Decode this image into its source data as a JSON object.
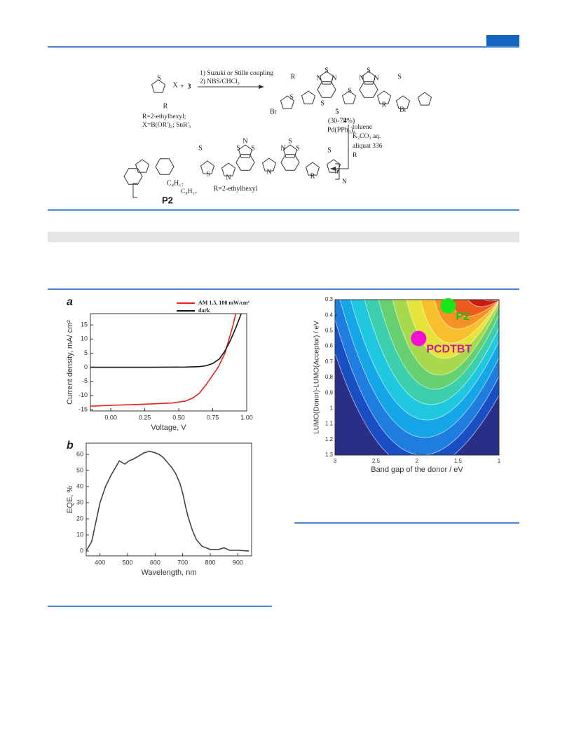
{
  "scheme": {
    "labels": [
      "S",
      "X",
      "+",
      "3",
      "R",
      "R=2-ethylhexyl;",
      "X=B(OR')₂; SnR'₃",
      "1) Suzuki or Stille coupling",
      "2) NBS/CHCl₃",
      "Br",
      "R",
      "S",
      "N",
      "S",
      "N",
      "S",
      "N",
      "N",
      "S",
      "S",
      "R",
      "S",
      "Br",
      "5",
      "(30-75%)",
      "4",
      "Pd(PPh₃)₄",
      "toluene",
      "K₂CO₃ aq.",
      "aliquat 336",
      "R",
      "S",
      "S",
      "N",
      "S",
      "N",
      "S",
      "N",
      "N",
      "S",
      "S",
      "R",
      "S",
      "n",
      "N",
      "C₈H₁₇",
      "C₈H₁₇",
      "P2",
      "R=2-ethylhexyl"
    ]
  },
  "chart_data": [
    {
      "type": "line",
      "panel": "a",
      "xlabel": "Voltage, V",
      "ylabel": "Current density, mA/ cm²",
      "xlim": [
        -0.15,
        1.0
      ],
      "ylim": [
        -15.5,
        19
      ],
      "xticks": [
        {
          "value": 0,
          "label": "0.00"
        },
        {
          "value": 0.25,
          "label": "0.25"
        },
        {
          "value": 0.5,
          "label": "0.50"
        },
        {
          "value": 0.75,
          "label": "0.75"
        },
        {
          "value": 1,
          "label": "1.00"
        }
      ],
      "yticks": [
        -15,
        -10,
        -5,
        0,
        5,
        10,
        15
      ],
      "series": [
        {
          "name": "AM 1.5, 100 mW/cm²",
          "color": "#e8231c",
          "x": [
            -0.15,
            0,
            0.15,
            0.3,
            0.45,
            0.55,
            0.6,
            0.65,
            0.7,
            0.75,
            0.79,
            0.84,
            0.87,
            0.9,
            0.92
          ],
          "values": [
            -13.8,
            -13.5,
            -13.3,
            -13.0,
            -12.7,
            -12.0,
            -11.0,
            -9.3,
            -6.3,
            -2.8,
            0,
            5,
            10,
            15,
            19
          ]
        },
        {
          "name": "dark",
          "color": "#111111",
          "x": [
            -0.15,
            0,
            0.3,
            0.55,
            0.65,
            0.7,
            0.75,
            0.8,
            0.84,
            0.88,
            0.92,
            0.96
          ],
          "values": [
            0,
            0,
            0,
            0.05,
            0.2,
            0.5,
            1.3,
            3.0,
            5.8,
            9.5,
            14,
            19
          ]
        }
      ]
    },
    {
      "type": "line",
      "panel": "b",
      "xlabel": "Wavelength, nm",
      "ylabel": "EQE, %",
      "xlim": [
        350,
        950
      ],
      "ylim": [
        -3,
        67
      ],
      "xticks": [
        400,
        500,
        600,
        700,
        800,
        900
      ],
      "yticks": [
        0,
        10,
        20,
        30,
        40,
        50,
        60
      ],
      "series": [
        {
          "name": "EQE",
          "color": "#444444",
          "x": [
            350,
            370,
            385,
            400,
            420,
            440,
            460,
            470,
            480,
            490,
            505,
            520,
            540,
            560,
            580,
            600,
            615,
            630,
            645,
            660,
            675,
            690,
            700,
            710,
            720,
            735,
            750,
            770,
            800,
            830,
            850,
            870,
            900,
            940
          ],
          "values": [
            0,
            6,
            18,
            30,
            40,
            47,
            53,
            56,
            55,
            54,
            56,
            57,
            59,
            61,
            62,
            61,
            60,
            58,
            55,
            52,
            48,
            42,
            36,
            28,
            21,
            13,
            7,
            3,
            1,
            1,
            2,
            0.5,
            0.5,
            0
          ]
        }
      ]
    },
    {
      "type": "contour",
      "xlabel": "Band gap of the donor / eV",
      "ylabel": "LUMO(Donor)-LUMO(Acceptor) / eV",
      "xlim": [
        3,
        1
      ],
      "ylim": [
        1.3,
        0.3
      ],
      "xticks": [
        3,
        2.5,
        2,
        1.5,
        1
      ],
      "yticks": [
        0.3,
        0.4,
        0.5,
        0.6,
        0.7,
        0.8,
        0.9,
        1,
        1.1,
        1.2,
        1.3
      ],
      "points": [
        {
          "name": "P2",
          "color": "#19e619",
          "label_color": "#19c019",
          "x": 1.62,
          "y": 0.34
        },
        {
          "name": "PCDTBT",
          "color": "#f20fd6",
          "label_color": "#c8199b",
          "x": 1.98,
          "y": 0.55
        }
      ]
    }
  ]
}
